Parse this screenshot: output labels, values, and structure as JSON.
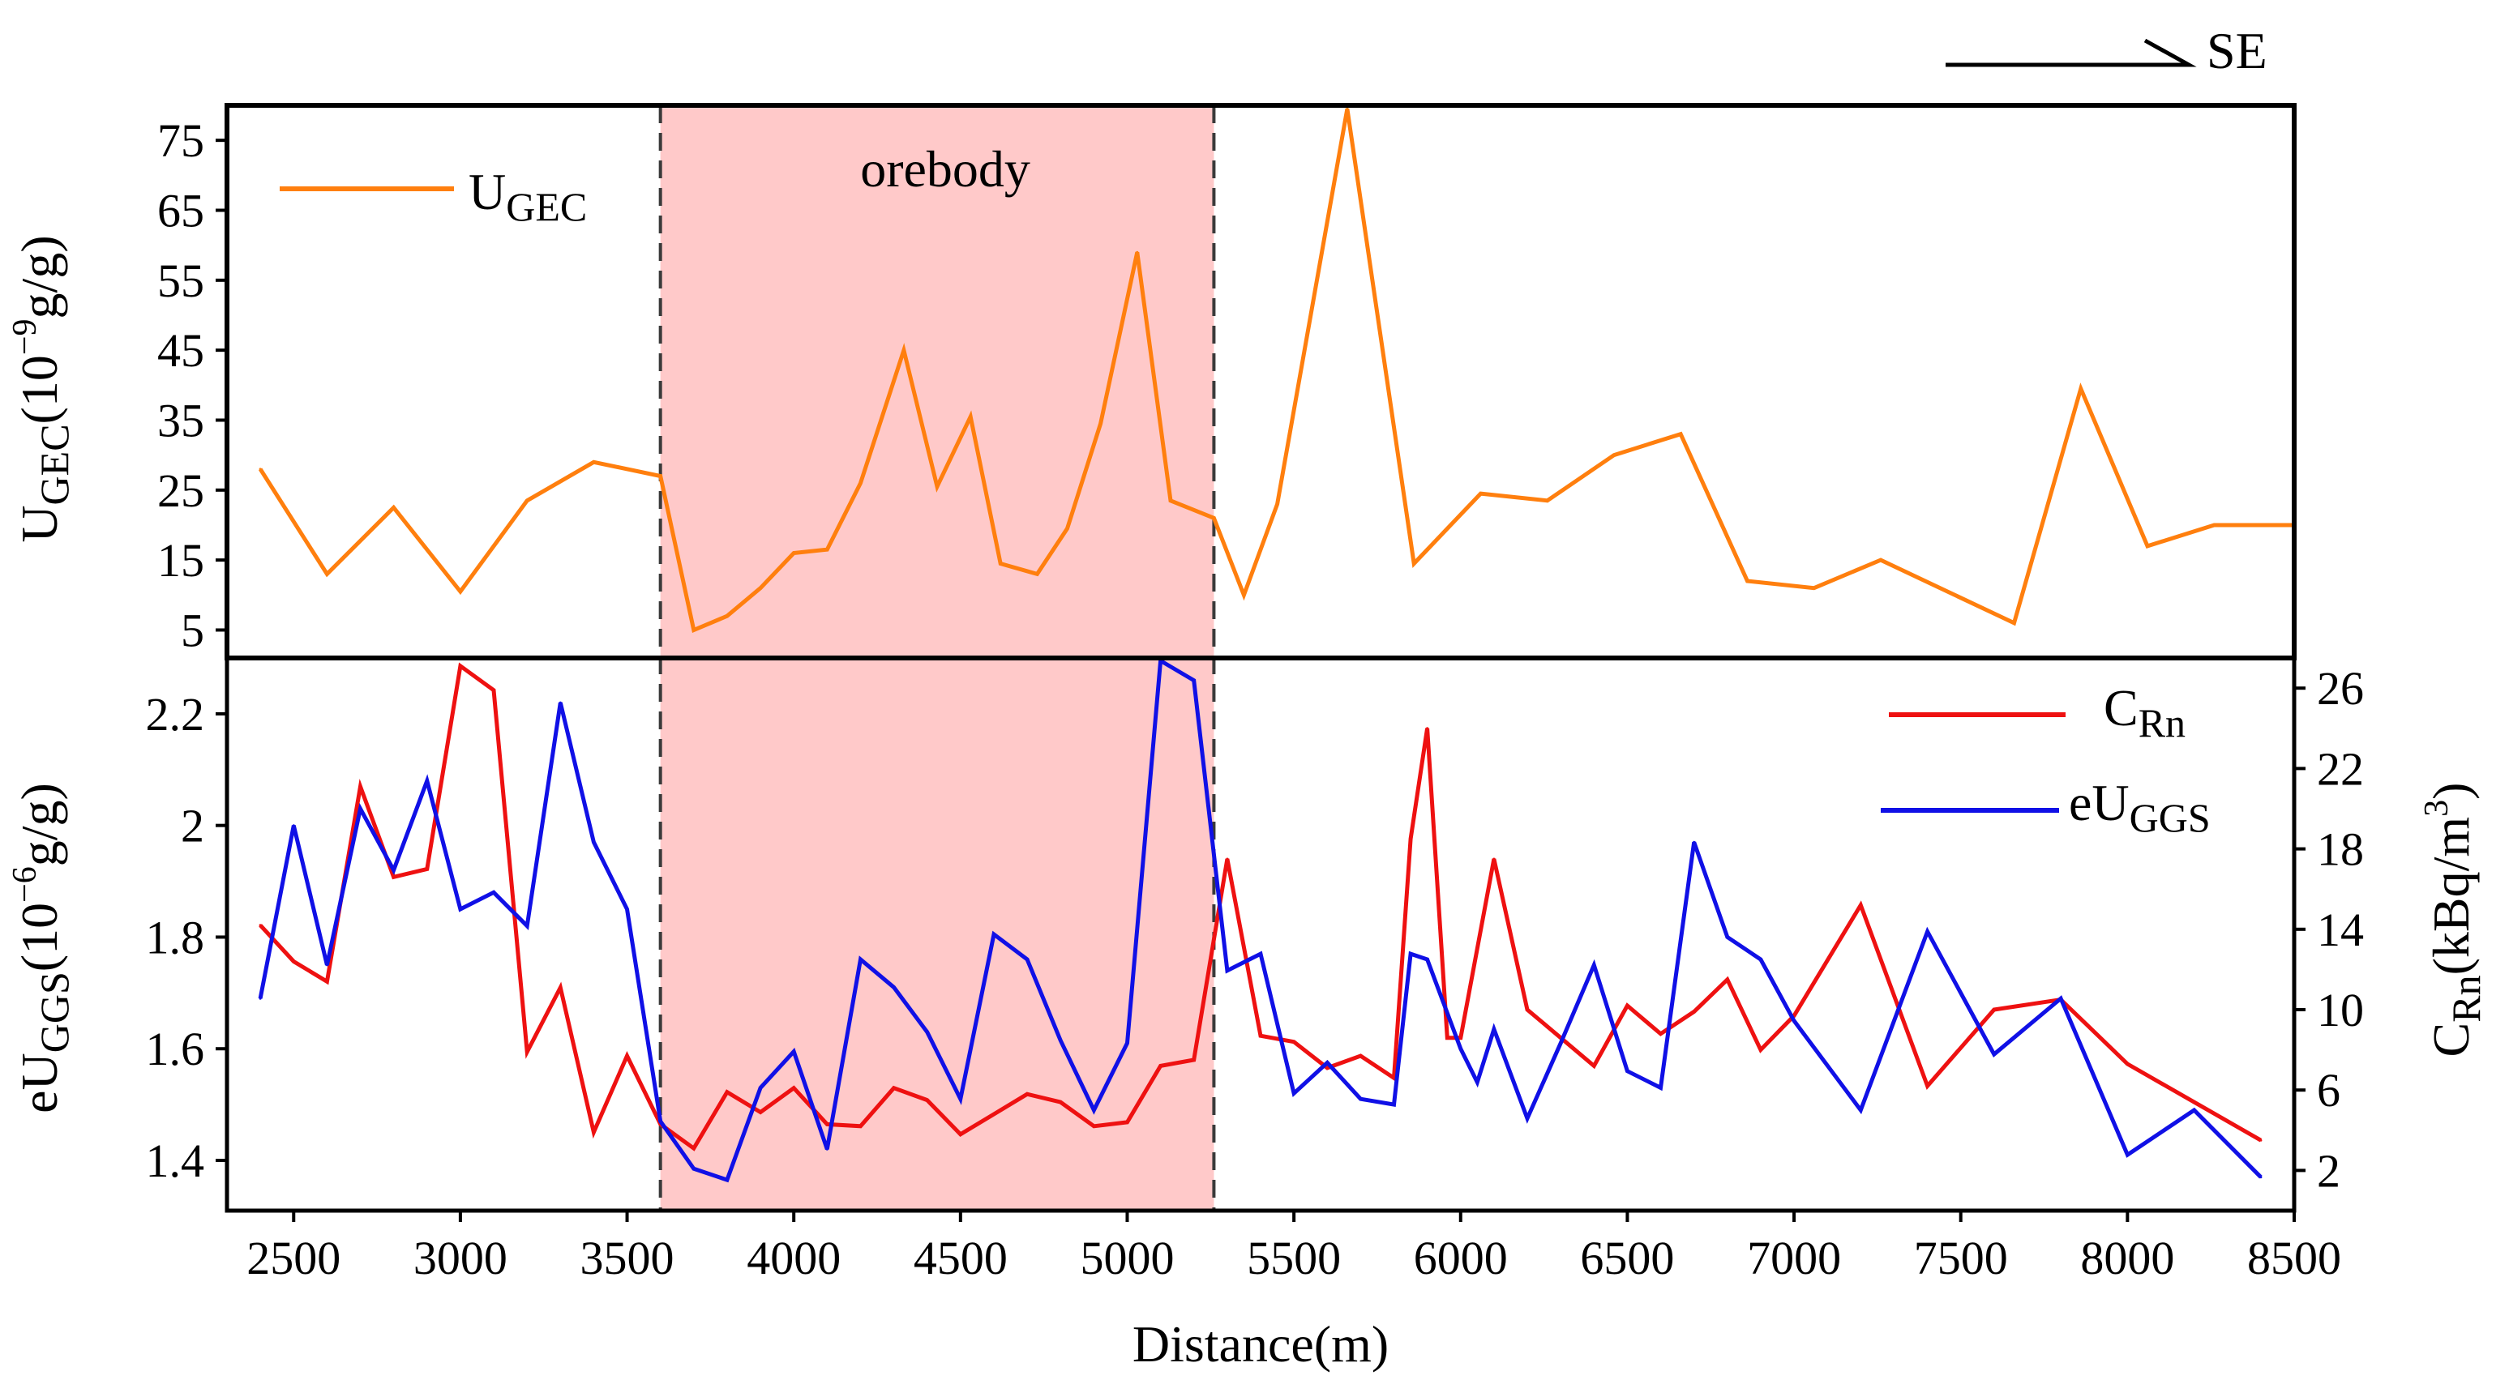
{
  "direction_label": "SE",
  "colors": {
    "ugec": "#ff7f0e",
    "crn": "#ee1111",
    "euggs": "#1010e6",
    "orebody_fill": "#ffc9c9",
    "orebody_border": "#3a3a3a",
    "frame": "#000000"
  },
  "chart_data": [
    {
      "type": "line",
      "panel": "top",
      "xlabel": "Distance(m)",
      "ylabel": "U_GEC(10^-9 g/g)",
      "ylabel_parts": {
        "main": "U",
        "sub": "GEC",
        "rest": "(10",
        "exp": "−9",
        "tail": "g/g)"
      },
      "xlim": [
        2300,
        8500
      ],
      "ylim": [
        1,
        80
      ],
      "yticks": [
        "5",
        "15",
        "25",
        "35",
        "45",
        "55",
        "65",
        "75"
      ],
      "annotation": {
        "text": "orebody",
        "x_range": [
          3600,
          5260
        ]
      },
      "legend": {
        "position": "top-left",
        "main": "U",
        "sub": "GEC"
      },
      "series": [
        {
          "name": "UGEC",
          "color_key": "ugec",
          "points": [
            [
              2400,
              28
            ],
            [
              2600,
              13
            ],
            [
              2800,
              22.5
            ],
            [
              3000,
              10.5
            ],
            [
              3200,
              23.5
            ],
            [
              3400,
              29
            ],
            [
              3600,
              27
            ],
            [
              3700,
              5
            ],
            [
              3800,
              7
            ],
            [
              3900,
              11
            ],
            [
              4000,
              16
            ],
            [
              4100,
              16.5
            ],
            [
              4200,
              26
            ],
            [
              4330,
              45
            ],
            [
              4430,
              25.5
            ],
            [
              4530,
              35.5
            ],
            [
              4620,
              14.5
            ],
            [
              4730,
              13
            ],
            [
              4820,
              19.5
            ],
            [
              4920,
              34.5
            ],
            [
              5030,
              59
            ],
            [
              5130,
              23.5
            ],
            [
              5260,
              21
            ],
            [
              5350,
              10
            ],
            [
              5450,
              23
            ],
            [
              5660,
              79.5
            ],
            [
              5860,
              14.5
            ],
            [
              6060,
              24.5
            ],
            [
              6260,
              23.5
            ],
            [
              6460,
              30
            ],
            [
              6660,
              33
            ],
            [
              6860,
              12
            ],
            [
              7060,
              11
            ],
            [
              7260,
              15
            ],
            [
              7460,
              10.5
            ],
            [
              7660,
              6
            ],
            [
              7860,
              39.5
            ],
            [
              8060,
              17
            ],
            [
              8260,
              20
            ],
            [
              8500,
              20
            ]
          ]
        }
      ]
    },
    {
      "type": "line",
      "panel": "bottom",
      "xlabel": "Distance(m)",
      "xlim": [
        2300,
        8500
      ],
      "xticks": [
        "2500",
        "3000",
        "3500",
        "4000",
        "4500",
        "5000",
        "5500",
        "6000",
        "6500",
        "7000",
        "7500",
        "8000",
        "8500"
      ],
      "ylabel_left": "eU_GGS(10^-6 g/g)",
      "ylabel_left_parts": {
        "main": "eU",
        "sub": "GGS",
        "rest": "(10",
        "exp": "−6",
        "tail": "g/g)"
      },
      "ylim_left": [
        1.31,
        2.3
      ],
      "yticks_left": [
        "1.4",
        "1.6",
        "1.8",
        "2",
        "2.2"
      ],
      "ylabel_right": "C_Rn(kBq/m^3)",
      "ylabel_right_parts": {
        "main": "C",
        "sub": "Rn",
        "rest": "(kBq/m",
        "exp": "3",
        "tail": ")"
      },
      "ylim_right": [
        0,
        27.5
      ],
      "yticks_right": [
        "2",
        "6",
        "10",
        "14",
        "18",
        "22",
        "26"
      ],
      "legend": {
        "position": "top-right",
        "items": [
          {
            "main": "C",
            "sub": "Rn",
            "color_key": "crn"
          },
          {
            "main": "eU",
            "sub": "GGS",
            "color_key": "euggs"
          }
        ]
      },
      "series": [
        {
          "name": "CRn",
          "axis": "right",
          "color_key": "crn",
          "points": [
            [
              2400,
              14.2
            ],
            [
              2500,
              12.4
            ],
            [
              2600,
              11.4
            ],
            [
              2700,
              21.1
            ],
            [
              2800,
              16.6
            ],
            [
              2900,
              17
            ],
            [
              3000,
              27.1
            ],
            [
              3100,
              25.9
            ],
            [
              3200,
              7.9
            ],
            [
              3300,
              11.1
            ],
            [
              3400,
              3.9
            ],
            [
              3500,
              7.7
            ],
            [
              3600,
              4.3
            ],
            [
              3700,
              3.1
            ],
            [
              3800,
              5.9
            ],
            [
              3900,
              4.9
            ],
            [
              4000,
              6.1
            ],
            [
              4100,
              4.3
            ],
            [
              4200,
              4.2
            ],
            [
              4300,
              6.1
            ],
            [
              4400,
              5.5
            ],
            [
              4500,
              3.8
            ],
            [
              4600,
              4.8
            ],
            [
              4700,
              5.8
            ],
            [
              4800,
              5.4
            ],
            [
              4900,
              4.2
            ],
            [
              5000,
              4.4
            ],
            [
              5100,
              7.2
            ],
            [
              5200,
              7.5
            ],
            [
              5300,
              17.5
            ],
            [
              5400,
              8.7
            ],
            [
              5500,
              8.4
            ],
            [
              5600,
              7.1
            ],
            [
              5700,
              7.7
            ],
            [
              5800,
              6.6
            ],
            [
              5850,
              18.5
            ],
            [
              5900,
              24
            ],
            [
              5960,
              8.6
            ],
            [
              6000,
              8.6
            ],
            [
              6100,
              17.5
            ],
            [
              6200,
              10
            ],
            [
              6300,
              8.6
            ],
            [
              6400,
              7.2
            ],
            [
              6500,
              10.2
            ],
            [
              6600,
              8.8
            ],
            [
              6700,
              9.9
            ],
            [
              6800,
              11.5
            ],
            [
              6900,
              8
            ],
            [
              7000,
              9.7
            ],
            [
              7200,
              15.2
            ],
            [
              7400,
              6.2
            ],
            [
              7600,
              10
            ],
            [
              7800,
              10.5
            ],
            [
              8000,
              7.3
            ],
            [
              8200,
              5.4
            ],
            [
              8400,
              3.5
            ]
          ]
        },
        {
          "name": "eUGGS",
          "axis": "left",
          "color_key": "euggs",
          "points": [
            [
              2400,
              1.69
            ],
            [
              2500,
              2.0
            ],
            [
              2600,
              1.75
            ],
            [
              2700,
              2.03
            ],
            [
              2800,
              1.92
            ],
            [
              2900,
              2.08
            ],
            [
              3000,
              1.85
            ],
            [
              3100,
              1.88
            ],
            [
              3200,
              1.82
            ],
            [
              3300,
              2.22
            ],
            [
              3400,
              1.97
            ],
            [
              3500,
              1.85
            ],
            [
              3600,
              1.47
            ],
            [
              3700,
              1.385
            ],
            [
              3800,
              1.365
            ],
            [
              3900,
              1.53
            ],
            [
              4000,
              1.595
            ],
            [
              4100,
              1.42
            ],
            [
              4200,
              1.76
            ],
            [
              4300,
              1.71
            ],
            [
              4400,
              1.63
            ],
            [
              4500,
              1.51
            ],
            [
              4600,
              1.805
            ],
            [
              4700,
              1.76
            ],
            [
              4800,
              1.615
            ],
            [
              4900,
              1.49
            ],
            [
              5000,
              1.61
            ],
            [
              5100,
              2.295
            ],
            [
              5200,
              2.26
            ],
            [
              5300,
              1.74
            ],
            [
              5400,
              1.77
            ],
            [
              5500,
              1.52
            ],
            [
              5600,
              1.575
            ],
            [
              5700,
              1.51
            ],
            [
              5800,
              1.5
            ],
            [
              5850,
              1.77
            ],
            [
              5900,
              1.76
            ],
            [
              6000,
              1.6
            ],
            [
              6050,
              1.54
            ],
            [
              6100,
              1.635
            ],
            [
              6200,
              1.475
            ],
            [
              6300,
              1.61
            ],
            [
              6400,
              1.75
            ],
            [
              6500,
              1.56
            ],
            [
              6600,
              1.53
            ],
            [
              6700,
              1.97
            ],
            [
              6800,
              1.8
            ],
            [
              6900,
              1.76
            ],
            [
              7000,
              1.65
            ],
            [
              7200,
              1.49
            ],
            [
              7400,
              1.81
            ],
            [
              7600,
              1.59
            ],
            [
              7800,
              1.69
            ],
            [
              8000,
              1.41
            ],
            [
              8200,
              1.49
            ],
            [
              8400,
              1.37
            ]
          ]
        }
      ]
    }
  ]
}
